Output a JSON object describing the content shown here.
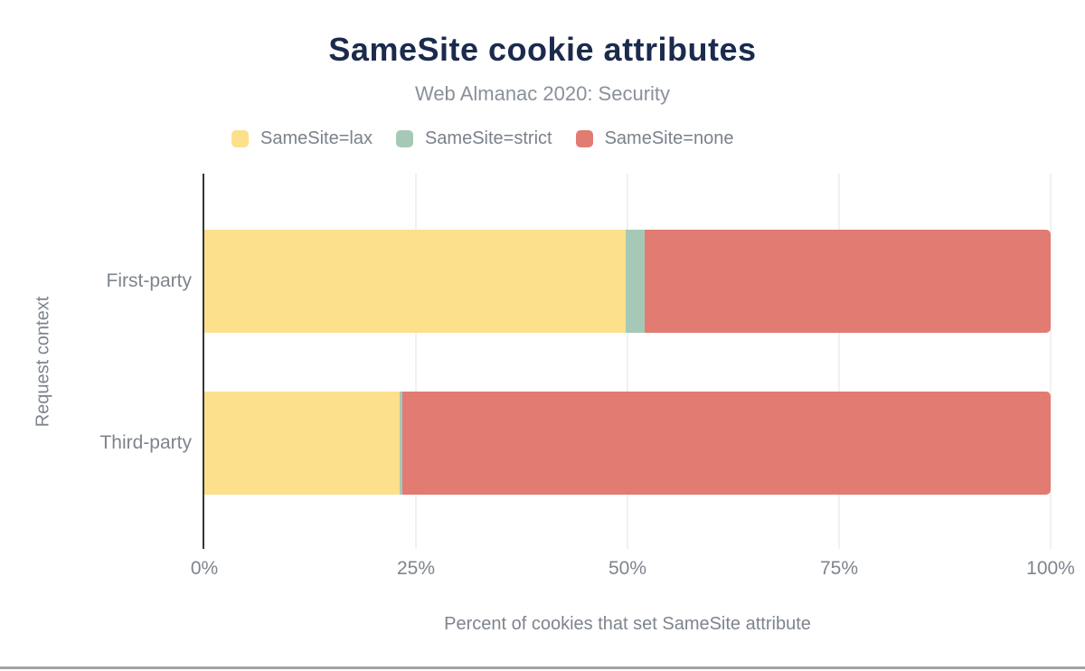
{
  "chart_data": {
    "type": "bar",
    "orientation": "horizontal",
    "stacked": true,
    "title": "SameSite cookie attributes",
    "subtitle": "Web Almanac 2020: Security",
    "categories": [
      "First-party",
      "Third-party"
    ],
    "series": [
      {
        "name": "SameSite=lax",
        "color": "#fce08c",
        "values": [
          49.8,
          23.1
        ]
      },
      {
        "name": "SameSite=strict",
        "color": "#a5c9b6",
        "values": [
          2.2,
          0.3
        ]
      },
      {
        "name": "SameSite=none",
        "color": "#e27b71",
        "values": [
          48.0,
          76.6
        ]
      }
    ],
    "xlabel": "Percent of cookies that set SameSite attribute",
    "ylabel": "Request context",
    "xlim": [
      0,
      100
    ],
    "x_ticks": [
      {
        "label": "0%",
        "value": 0
      },
      {
        "label": "25%",
        "value": 25
      },
      {
        "label": "50%",
        "value": 50
      },
      {
        "label": "75%",
        "value": 75
      },
      {
        "label": "100%",
        "value": 100
      }
    ],
    "legend_position": "top",
    "grid": "vertical-light"
  },
  "colors": {
    "background": "#ffffff",
    "title": "#1b2b4d",
    "subtitle": "#8a9099",
    "legend_text": "#7a818a",
    "axis_text": "#7e848d",
    "axis_line": "#32363b",
    "gridline": "#f1f1f1",
    "bottom_divider": "#a3a3a3"
  }
}
